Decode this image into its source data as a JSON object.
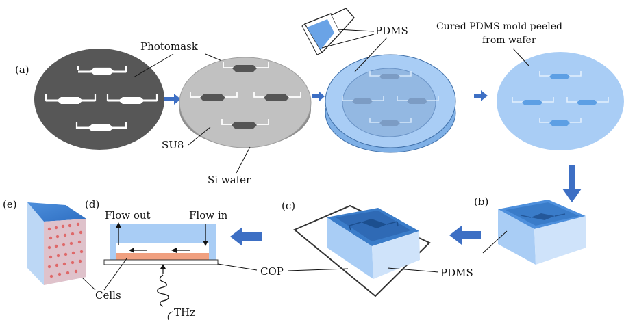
{
  "panels": {
    "a": "(a)",
    "b": "(b)",
    "c": "(c)",
    "d": "(d)",
    "e": "(e)"
  },
  "labels": {
    "photomask": "Photomask",
    "su8": "SU8",
    "si_wafer": "Si wafer",
    "pdms_top": "PDMS",
    "cured_line1": "Cured PDMS mold peeled",
    "cured_line2": "from wafer",
    "pdms_bottom": "PDMS",
    "cop": "COP",
    "cells": "Cells",
    "flow_out": "Flow out",
    "flow_in": "Flow in",
    "thz": "THz"
  },
  "colors": {
    "photomask": "#555555",
    "wafer_top": "#bdbdbd",
    "wafer_side": "#8e8e8e",
    "pdms_blue": "#a9cdf5",
    "pdms_deep": "#5b9be0",
    "arrow_blue": "#3d6fc4",
    "cells": "#f0a080"
  }
}
